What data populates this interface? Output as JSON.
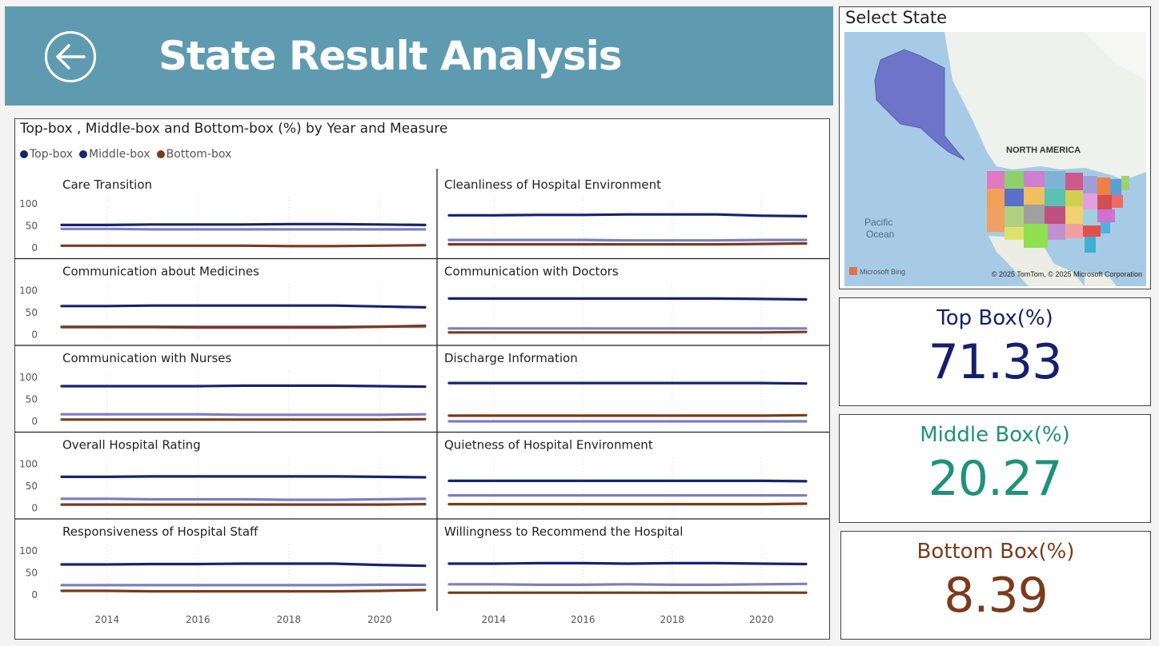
{
  "header": {
    "title": "State Result Analysis",
    "back_icon": "arrow-left-icon"
  },
  "map": {
    "title": "Select State",
    "labels": {
      "continent": "NORTH AMERICA",
      "ocean_line1": "Pacific",
      "ocean_line2": "Ocean"
    },
    "attribution": "© 2025 TomTom, © 2025 Microsoft Corporation",
    "brand": "Microsoft Bing"
  },
  "kpis": {
    "top": {
      "label": "Top Box(%)",
      "value": "71.33",
      "color": "#14206e"
    },
    "middle": {
      "label": "Middle Box(%)",
      "value": "20.27",
      "color": "#1f9279"
    },
    "bottom": {
      "label": "Bottom Box(%)",
      "value": "8.39",
      "color": "#7a3b1c"
    }
  },
  "chart_data": {
    "type": "line",
    "title": "Top-box , Middle-box and Bottom-box (%) by Year and Measure",
    "legend_position": "top-left",
    "legend": [
      {
        "name": "Top-box",
        "color": "#17236e"
      },
      {
        "name": "Middle-box",
        "color": "#17236e"
      },
      {
        "name": "Bottom-box",
        "color": "#7a3b1c"
      }
    ],
    "series_colors": {
      "Top-box": "#17236e",
      "Middle-box": "#7b7fc2",
      "Bottom-box": "#7a3b1c"
    },
    "x": [
      2013,
      2014,
      2015,
      2016,
      2017,
      2018,
      2019,
      2020,
      2021
    ],
    "xticks": [
      2014,
      2016,
      2018,
      2020
    ],
    "yticks": [
      0,
      50,
      100
    ],
    "ylim": [
      0,
      100
    ],
    "grid": true,
    "panels": [
      {
        "measure": "Care Transition",
        "series": [
          {
            "name": "Top-box",
            "values": [
              52,
              52,
              53,
              53,
              53,
              54,
              54,
              53,
              52
            ]
          },
          {
            "name": "Middle-box",
            "values": [
              43,
              43,
              42,
              42,
              42,
              42,
              42,
              42,
              42
            ]
          },
          {
            "name": "Bottom-box",
            "values": [
              5,
              5,
              5,
              5,
              5,
              4,
              4,
              5,
              6
            ]
          }
        ]
      },
      {
        "measure": "Cleanliness of Hospital Environment",
        "series": [
          {
            "name": "Top-box",
            "values": [
              74,
              74,
              75,
              75,
              76,
              76,
              76,
              73,
              72
            ]
          },
          {
            "name": "Middle-box",
            "values": [
              18,
              18,
              18,
              18,
              17,
              17,
              17,
              18,
              18
            ]
          },
          {
            "name": "Bottom-box",
            "values": [
              8,
              8,
              8,
              8,
              8,
              8,
              8,
              9,
              10
            ]
          }
        ]
      },
      {
        "measure": "Communication about Medicines",
        "series": [
          {
            "name": "Top-box",
            "values": [
              65,
              65,
              66,
              66,
              66,
              66,
              66,
              64,
              62
            ]
          },
          {
            "name": "Middle-box",
            "values": [
              18,
              18,
              18,
              18,
              18,
              18,
              18,
              18,
              18
            ]
          },
          {
            "name": "Bottom-box",
            "values": [
              17,
              17,
              17,
              16,
              16,
              16,
              16,
              18,
              20
            ]
          }
        ]
      },
      {
        "measure": "Communication with Doctors",
        "series": [
          {
            "name": "Top-box",
            "values": [
              82,
              82,
              82,
              82,
              82,
              82,
              82,
              81,
              80
            ]
          },
          {
            "name": "Middle-box",
            "values": [
              14,
              14,
              14,
              14,
              14,
              14,
              14,
              14,
              14
            ]
          },
          {
            "name": "Bottom-box",
            "values": [
              5,
              5,
              5,
              5,
              5,
              5,
              5,
              5,
              6
            ]
          }
        ]
      },
      {
        "measure": "Communication with Nurses",
        "series": [
          {
            "name": "Top-box",
            "values": [
              80,
              80,
              80,
              80,
              81,
              81,
              81,
              80,
              79
            ]
          },
          {
            "name": "Middle-box",
            "values": [
              16,
              16,
              16,
              16,
              15,
              15,
              15,
              15,
              16
            ]
          },
          {
            "name": "Bottom-box",
            "values": [
              4,
              4,
              4,
              4,
              4,
              4,
              4,
              4,
              5
            ]
          }
        ]
      },
      {
        "measure": "Discharge Information",
        "series": [
          {
            "name": "Top-box",
            "values": [
              87,
              87,
              87,
              87,
              87,
              87,
              87,
              87,
              86
            ]
          },
          {
            "name": "Middle-box",
            "values": [
              0,
              0,
              0,
              0,
              0,
              0,
              0,
              0,
              0
            ]
          },
          {
            "name": "Bottom-box",
            "values": [
              13,
              13,
              13,
              13,
              13,
              13,
              13,
              13,
              14
            ]
          }
        ]
      },
      {
        "measure": "Overall Hospital Rating",
        "series": [
          {
            "name": "Top-box",
            "values": [
              71,
              71,
              72,
              72,
              72,
              72,
              72,
              71,
              70
            ]
          },
          {
            "name": "Middle-box",
            "values": [
              21,
              21,
              20,
              20,
              20,
              19,
              19,
              20,
              21
            ]
          },
          {
            "name": "Bottom-box",
            "values": [
              8,
              8,
              8,
              8,
              8,
              8,
              8,
              8,
              9
            ]
          }
        ]
      },
      {
        "measure": "Quietness of Hospital Environment",
        "series": [
          {
            "name": "Top-box",
            "values": [
              62,
              62,
              62,
              62,
              62,
              62,
              62,
              62,
              61
            ]
          },
          {
            "name": "Middle-box",
            "values": [
              29,
              29,
              29,
              29,
              29,
              29,
              29,
              29,
              29
            ]
          },
          {
            "name": "Bottom-box",
            "values": [
              9,
              9,
              9,
              9,
              9,
              9,
              9,
              9,
              10
            ]
          }
        ]
      },
      {
        "measure": "Responsiveness of Hospital Staff",
        "series": [
          {
            "name": "Top-box",
            "values": [
              69,
              69,
              70,
              70,
              71,
              71,
              71,
              68,
              66
            ]
          },
          {
            "name": "Middle-box",
            "values": [
              22,
              22,
              22,
              22,
              22,
              22,
              22,
              23,
              23
            ]
          },
          {
            "name": "Bottom-box",
            "values": [
              9,
              9,
              8,
              8,
              8,
              8,
              8,
              9,
              11
            ]
          }
        ]
      },
      {
        "measure": "Willingness to Recommend the Hospital",
        "series": [
          {
            "name": "Top-box",
            "values": [
              71,
              71,
              72,
              72,
              71,
              72,
              72,
              71,
              70
            ]
          },
          {
            "name": "Middle-box",
            "values": [
              24,
              24,
              23,
              23,
              24,
              23,
              23,
              24,
              25
            ]
          },
          {
            "name": "Bottom-box",
            "values": [
              5,
              5,
              5,
              5,
              5,
              5,
              5,
              5,
              5
            ]
          }
        ]
      }
    ]
  }
}
